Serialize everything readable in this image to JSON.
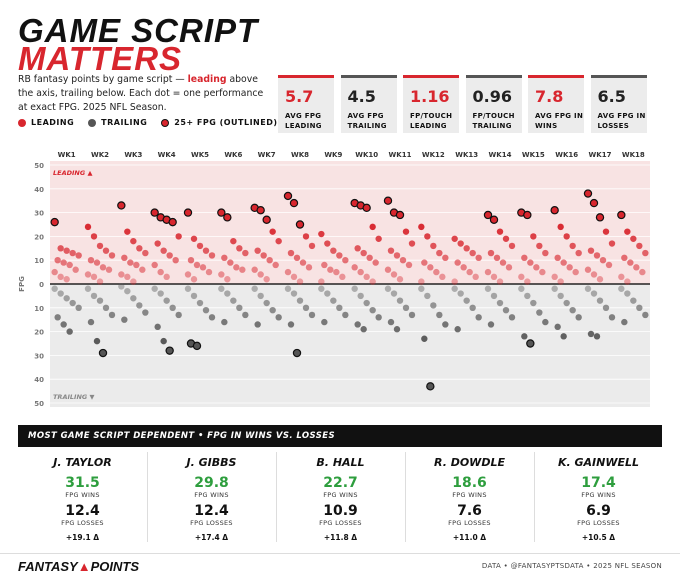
{
  "header": {
    "title_line1": "GAME SCRIPT",
    "title_line2": "MATTERS",
    "subtitle": [
      "RB fantasy points by game script — ",
      "leading",
      " above the axis, trailing below. Each dot = one performance at exact FPG. 2025 NFL Season."
    ]
  },
  "stats": [
    {
      "value": 5.7,
      "label": "AVG FPG LEADING",
      "color": "#d8262e"
    },
    {
      "value": 4.5,
      "label": "AVG FPG TRAILING",
      "color": "#555555"
    },
    {
      "value": 1.16,
      "label": "FP/TOUCH LEADING",
      "color": "#d8262e"
    },
    {
      "value": 0.96,
      "label": "FP/TOUCH TRAILING",
      "color": "#555555"
    },
    {
      "value": 7.8,
      "label": "AVG FPG IN WINS",
      "color": "#d8262e"
    },
    {
      "value": 6.5,
      "label": "AVG FPG IN LOSSES",
      "color": "#555555"
    }
  ],
  "chart_data": {
    "type": "strip",
    "y_label": "FPG",
    "leading_note": "LEADING ▲",
    "trailing_note": "TRAILING ▼",
    "outline_legend": "25+ FPG (OUTLINED)",
    "outline_min": 25,
    "categories": [
      "WK1",
      "WK2",
      "WK3",
      "WK4",
      "WK5",
      "WK6",
      "WK7",
      "WK8",
      "WK9",
      "WK10",
      "WK11",
      "WK12",
      "WK13",
      "WK14",
      "WK15",
      "WK16",
      "WK17",
      "WK18"
    ],
    "ylim": [
      -50,
      50
    ],
    "yticks": [
      50,
      40,
      30,
      20,
      10,
      0,
      {
        "value": -10,
        "label": "10"
      },
      {
        "value": -20,
        "label": "20"
      },
      {
        "value": -30,
        "label": "30"
      },
      {
        "value": -40,
        "label": "40"
      },
      {
        "value": -50,
        "label": "50"
      }
    ],
    "series": [
      {
        "name": "LEADING",
        "color": "#d8262e",
        "values": [
          [
            26,
            15,
            14,
            13,
            12,
            10,
            9,
            8,
            6,
            5,
            3,
            2
          ],
          [
            24,
            20,
            16,
            14,
            12,
            10,
            9,
            7,
            6,
            4,
            3,
            1
          ],
          [
            33,
            22,
            18,
            15,
            13,
            11,
            9,
            8,
            6,
            4,
            3,
            1
          ],
          [
            30,
            28,
            27,
            26,
            20,
            17,
            14,
            12,
            10,
            8,
            5,
            3
          ],
          [
            30,
            19,
            16,
            14,
            12,
            10,
            8,
            7,
            5,
            4,
            2
          ],
          [
            30,
            28,
            18,
            15,
            13,
            11,
            9,
            7,
            6,
            4,
            2
          ],
          [
            32,
            31,
            27,
            22,
            18,
            14,
            12,
            10,
            8,
            6,
            4,
            2
          ],
          [
            37,
            34,
            25,
            20,
            16,
            13,
            11,
            9,
            7,
            5,
            3,
            1
          ],
          [
            21,
            17,
            14,
            12,
            10,
            8,
            6,
            5,
            3,
            1
          ],
          [
            34,
            33,
            32,
            24,
            19,
            15,
            13,
            11,
            9,
            7,
            5,
            3,
            1
          ],
          [
            35,
            30,
            29,
            22,
            17,
            14,
            12,
            10,
            8,
            6,
            4,
            2
          ],
          [
            24,
            20,
            16,
            13,
            11,
            9,
            7,
            5,
            3,
            1
          ],
          [
            19,
            17,
            15,
            13,
            11,
            9,
            7,
            5,
            3,
            1
          ],
          [
            29,
            27,
            22,
            19,
            16,
            13,
            11,
            9,
            7,
            5,
            3,
            1
          ],
          [
            30,
            29,
            20,
            16,
            13,
            11,
            9,
            7,
            5,
            3,
            1
          ],
          [
            31,
            24,
            20,
            16,
            13,
            11,
            9,
            7,
            5,
            3,
            1
          ],
          [
            38,
            34,
            28,
            22,
            17,
            14,
            12,
            10,
            8,
            6,
            4,
            2
          ],
          [
            29,
            22,
            19,
            16,
            13,
            11,
            9,
            7,
            5,
            3,
            1
          ]
        ]
      },
      {
        "name": "TRAILING",
        "color": "#555555",
        "values": [
          [
            -2,
            -4,
            -6,
            -8,
            -10,
            -14,
            -17,
            -20
          ],
          [
            -2,
            -5,
            -7,
            -10,
            -13,
            -16,
            -24,
            -29
          ],
          [
            -1,
            -3,
            -6,
            -9,
            -12,
            -15
          ],
          [
            -2,
            -4,
            -7,
            -10,
            -13,
            -18,
            -24,
            -28
          ],
          [
            -2,
            -5,
            -8,
            -11,
            -14,
            -25,
            -26
          ],
          [
            -2,
            -4,
            -7,
            -10,
            -13,
            -16
          ],
          [
            -2,
            -5,
            -8,
            -11,
            -14,
            -17
          ],
          [
            -2,
            -4,
            -7,
            -10,
            -13,
            -17,
            -29
          ],
          [
            -2,
            -4,
            -7,
            -10,
            -13,
            -16
          ],
          [
            -2,
            -5,
            -8,
            -11,
            -14,
            -17,
            -19
          ],
          [
            -2,
            -4,
            -7,
            -10,
            -13,
            -16,
            -19
          ],
          [
            -2,
            -5,
            -9,
            -13,
            -17,
            -23,
            -43
          ],
          [
            -2,
            -4,
            -7,
            -10,
            -14,
            -19
          ],
          [
            -2,
            -5,
            -8,
            -11,
            -14,
            -17
          ],
          [
            -2,
            -5,
            -8,
            -12,
            -16,
            -22,
            -25
          ],
          [
            -2,
            -5,
            -8,
            -11,
            -14,
            -18,
            -22
          ],
          [
            -2,
            -4,
            -7,
            -10,
            -14,
            -21,
            -22
          ],
          [
            -2,
            -4,
            -7,
            -10,
            -13,
            -16
          ]
        ]
      }
    ]
  },
  "table": {
    "title": "MOST GAME SCRIPT DEPENDENT • FPG IN WINS VS. LOSSES",
    "wins_label": "FPG WINS",
    "losses_label": "FPG LOSSES",
    "players": [
      {
        "name": "J. TAYLOR",
        "wins": 31.5,
        "losses": 12.4,
        "diff": "+19.1 Δ"
      },
      {
        "name": "J. GIBBS",
        "wins": 29.8,
        "losses": 12.4,
        "diff": "+17.4 Δ"
      },
      {
        "name": "B. HALL",
        "wins": 22.7,
        "losses": 10.9,
        "diff": "+11.8 Δ"
      },
      {
        "name": "R. DOWDLE",
        "wins": 18.6,
        "losses": 7.6,
        "diff": "+11.0 Δ"
      },
      {
        "name": "K. GAINWELL",
        "wins": 17.4,
        "losses": 6.9,
        "diff": "+10.5 Δ"
      }
    ]
  },
  "footer": {
    "logo_a": "FANTASY",
    "logo_b": "POINTS",
    "credit": "DATA • @FANTASYPTSDATA • 2025 NFL SEASON"
  }
}
